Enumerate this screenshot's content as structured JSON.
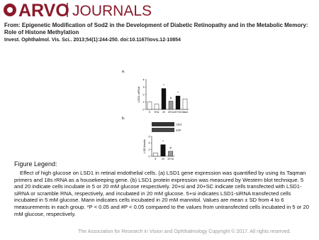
{
  "header": {
    "brand": "ARVO",
    "journals": "JOURNALS"
  },
  "article": {
    "from": "From: Epigenetic Modification of Sod2 in the Development of Diabetic Retinopathy and in the Metabolic Memory: Role of Histone Methylation",
    "citation": "Invest. Ophthalmol. Vis. Sci.. 2013;54(1):244-250. doi:10.1167/iovs.12-10854"
  },
  "figure": {
    "panel_a": {
      "type": "bar",
      "label": "a.",
      "ylabel": "LSD1 mRNA",
      "categories": [
        "5",
        "5+si",
        "20",
        "20+si",
        "20+SC",
        "Mann"
      ],
      "values": [
        1.0,
        0.7,
        2.8,
        1.1,
        1.8,
        1.4
      ],
      "colors": [
        "#ffffff",
        "#ffffff",
        "#111111",
        "#999999",
        "#111111",
        "#ffffff"
      ],
      "markers": [
        null,
        null,
        "*",
        "#",
        "*",
        null
      ],
      "ylim": [
        0,
        4
      ],
      "yticks": [
        0,
        1,
        2,
        3,
        4
      ]
    },
    "panel_b": {
      "type": "bar",
      "label": "b.",
      "ylabel": "LSD1/actin",
      "blot_labels": [
        "LSD1",
        "actin"
      ],
      "categories": [
        "5",
        "20",
        "20+si"
      ],
      "values": [
        1.0,
        3.5,
        1.5
      ],
      "colors": [
        "#ffffff",
        "#111111",
        "#999999"
      ],
      "markers": [
        null,
        "*",
        "#"
      ],
      "ylim": [
        0,
        6
      ],
      "yticks": [
        0,
        2,
        4,
        6
      ]
    }
  },
  "legend": {
    "heading": "Figure Legend:",
    "text": "Effect of high glucose on LSD1 in retinal endothelial cells. (a) LSD1 gene expression was quantified by using its Taqman primers and 18s rRNA as a housekeeping gene. (b) LSD1 protein expression was measured by Western blot technique. 5 and 20 indicate cells incubate in 5 or 20 mM glucose respectively. 20+si and 20+SC indicate cells transfected with LSD1-siRNA or scramble RNA, respectively, and incubated in 20 mM glucose. 5+si indicates LSD1-siRNA transfected cells incubated in 5 mM glucose. Mann indicates cells incubated in 20 mM mannitol. Values are mean ± SD from 4 to 6 measurements in each group. *P < 0.05 and #P < 0.05 compared to the values from untransfected cells incubated in 5 or 20 mM glucose, respectively."
  },
  "footer": {
    "text": "The Association for Research in Vision and Ophthalmology Copyright © 2017. All rights reserved."
  }
}
